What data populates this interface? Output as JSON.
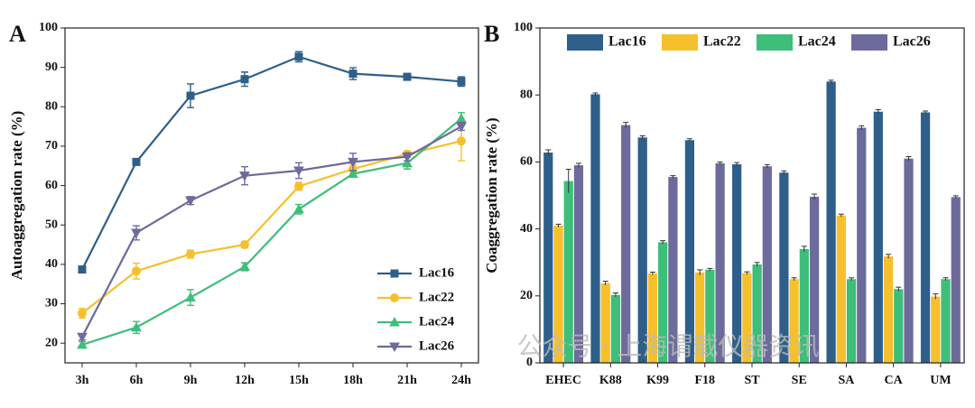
{
  "chart_data": [
    {
      "type": "line",
      "title": "A",
      "y_label": "Autoaggregation rate (%)",
      "categories": [
        "3h",
        "6h",
        "9h",
        "12h",
        "15h",
        "18h",
        "21h",
        "24h"
      ],
      "ylim": [
        15,
        100
      ],
      "yticks": [
        20,
        30,
        40,
        50,
        60,
        70,
        80,
        90,
        100
      ],
      "legend": "lower right",
      "series": [
        {
          "name": "Lac16",
          "color": "#2e5f8a",
          "marker": "square",
          "values": [
            38.7,
            66,
            82.8,
            87,
            92.7,
            88.4,
            87.6,
            86.4
          ],
          "errors": [
            0.8,
            0.5,
            3,
            1.8,
            1.3,
            1.5,
            0.8,
            1.2
          ]
        },
        {
          "name": "Lac22",
          "color": "#f5c02c",
          "marker": "circle",
          "values": [
            27.6,
            38.3,
            42.6,
            45,
            59.8,
            64.2,
            68,
            71.3
          ],
          "errors": [
            1.2,
            2,
            1,
            0.8,
            1,
            1.2,
            0.8,
            5
          ]
        },
        {
          "name": "Lac24",
          "color": "#3dbe79",
          "marker": "triangle",
          "values": [
            19.6,
            24,
            31.6,
            39.4,
            54,
            63,
            65.7,
            77
          ],
          "errors": [
            0.8,
            1.5,
            2,
            1,
            1.2,
            0.8,
            1.5,
            1.5
          ]
        },
        {
          "name": "Lac26",
          "color": "#6d6a9c",
          "marker": "triangle-down",
          "values": [
            21.6,
            48,
            56.2,
            62.5,
            63.8,
            66,
            67.3,
            75
          ],
          "errors": [
            0.8,
            1.8,
            1,
            2.3,
            2,
            2.2,
            1,
            1
          ]
        }
      ]
    },
    {
      "type": "bar",
      "title": "B",
      "y_label": "Coaggregation rate (%)",
      "categories": [
        "EHEC",
        "K88",
        "K99",
        "F18",
        "ST",
        "SE",
        "SA",
        "CA",
        "UM"
      ],
      "ylim": [
        0,
        100
      ],
      "yticks": [
        0,
        20,
        40,
        60,
        80,
        100
      ],
      "legend": "top",
      "series": [
        {
          "name": "Lac16",
          "color": "#2e5f8a",
          "values": [
            62.8,
            80.2,
            67.3,
            66.5,
            59.3,
            56.8,
            84,
            75,
            74.8
          ],
          "errors": [
            0.8,
            0.4,
            0.5,
            0.4,
            0.5,
            0.5,
            0.4,
            0.6,
            0.4
          ]
        },
        {
          "name": "Lac22",
          "color": "#f5c02c",
          "values": [
            41,
            23.8,
            26.7,
            27,
            26.8,
            25,
            44,
            31.8,
            19.8
          ],
          "errors": [
            0.4,
            0.6,
            0.4,
            0.8,
            0.4,
            0.4,
            0.4,
            0.6,
            0.8
          ]
        },
        {
          "name": "Lac24",
          "color": "#3dbe79",
          "values": [
            54.3,
            20.3,
            36,
            27.8,
            29.4,
            34,
            25,
            22,
            25
          ],
          "errors": [
            3.5,
            0.6,
            0.5,
            0.4,
            0.6,
            0.8,
            0.4,
            0.6,
            0.4
          ]
        },
        {
          "name": "Lac26",
          "color": "#6d6a9c",
          "values": [
            59,
            71,
            55.5,
            59.6,
            58.7,
            49.6,
            70.2,
            61,
            49.5
          ],
          "errors": [
            0.6,
            0.8,
            0.4,
            0.4,
            0.5,
            0.8,
            0.6,
            0.6,
            0.4
          ]
        }
      ]
    }
  ],
  "watermark": "公众号 · 上海谓载仪器资讯"
}
